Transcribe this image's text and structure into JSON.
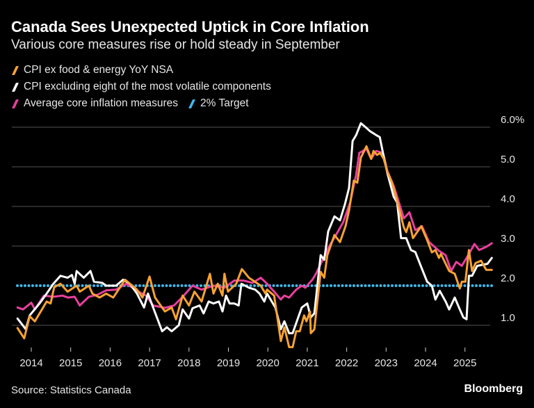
{
  "header": {
    "title": "Canada Sees Unexpected Uptick in Core Inflation",
    "subtitle": "Various core measures rise or hold steady in September"
  },
  "footer": {
    "source": "Source: Statistics Canada",
    "brand": "Bloomberg"
  },
  "colors": {
    "orange": "#f7a233",
    "white": "#ffffff",
    "pink": "#e8409e",
    "blue": "#3fb6e8",
    "grid": "#555555"
  },
  "chart_data": {
    "type": "line",
    "title": "Canada Sees Unexpected Uptick in Core Inflation",
    "subtitle": "Various core measures rise or hold steady in September",
    "xlabel": "",
    "ylabel": "",
    "xlim": [
      2013.65,
      2025.7
    ],
    "ylim": [
      0.45,
      6.2
    ],
    "x_ticks": [
      2014,
      2015,
      2016,
      2017,
      2018,
      2019,
      2020,
      2021,
      2022,
      2023,
      2024,
      2025
    ],
    "x_tick_labels": [
      "2014",
      "2015",
      "2016",
      "2017",
      "2018",
      "2019",
      "2020",
      "2021",
      "2022",
      "2023",
      "2024",
      "2025"
    ],
    "y_ticks": [
      1,
      2,
      3,
      4,
      5,
      6
    ],
    "y_tick_labels": [
      "1.0",
      "2.0",
      "3.0",
      "4.0",
      "5.0",
      "6.0%"
    ],
    "grid": true,
    "legend_position": "top-left",
    "series": [
      {
        "name": "CPI ex food & energy YoY NSA",
        "color": "#f7a233",
        "points": [
          [
            2013.65,
            0.93
          ],
          [
            2013.82,
            0.67
          ],
          [
            2013.96,
            1.23
          ],
          [
            2014.09,
            1.1
          ],
          [
            2014.39,
            1.6
          ],
          [
            2014.49,
            1.55
          ],
          [
            2014.58,
            1.96
          ],
          [
            2014.74,
            2.05
          ],
          [
            2014.92,
            1.85
          ],
          [
            2015.15,
            2.0
          ],
          [
            2015.23,
            1.85
          ],
          [
            2015.46,
            2.0
          ],
          [
            2015.55,
            1.8
          ],
          [
            2015.73,
            1.7
          ],
          [
            2015.9,
            1.8
          ],
          [
            2016.08,
            1.7
          ],
          [
            2016.38,
            2.15
          ],
          [
            2016.68,
            1.9
          ],
          [
            2016.82,
            1.7
          ],
          [
            2017.0,
            2.23
          ],
          [
            2017.14,
            1.7
          ],
          [
            2017.39,
            1.35
          ],
          [
            2017.56,
            1.45
          ],
          [
            2017.67,
            1.15
          ],
          [
            2017.84,
            1.75
          ],
          [
            2018.0,
            1.5
          ],
          [
            2018.14,
            1.85
          ],
          [
            2018.32,
            1.6
          ],
          [
            2018.53,
            2.3
          ],
          [
            2018.62,
            1.8
          ],
          [
            2018.73,
            2.05
          ],
          [
            2018.85,
            1.75
          ],
          [
            2018.9,
            2.3
          ],
          [
            2018.99,
            1.85
          ],
          [
            2019.2,
            2.05
          ],
          [
            2019.34,
            2.42
          ],
          [
            2019.52,
            2.2
          ],
          [
            2019.82,
            2.0
          ],
          [
            2019.94,
            1.8
          ],
          [
            2019.98,
            1.9
          ],
          [
            2020.16,
            1.75
          ],
          [
            2020.33,
            0.6
          ],
          [
            2020.42,
            0.95
          ],
          [
            2020.54,
            0.45
          ],
          [
            2020.63,
            0.45
          ],
          [
            2020.72,
            0.85
          ],
          [
            2020.81,
            0.85
          ],
          [
            2020.92,
            1.25
          ],
          [
            2020.98,
            1.1
          ],
          [
            2021.07,
            1.35
          ],
          [
            2021.09,
            0.8
          ],
          [
            2021.18,
            0.9
          ],
          [
            2021.34,
            2.35
          ],
          [
            2021.43,
            2.2
          ],
          [
            2021.51,
            2.77
          ],
          [
            2021.69,
            3.28
          ],
          [
            2021.83,
            3.1
          ],
          [
            2021.97,
            3.5
          ],
          [
            2022.06,
            3.9
          ],
          [
            2022.18,
            4.65
          ],
          [
            2022.27,
            4.6
          ],
          [
            2022.36,
            5.23
          ],
          [
            2022.5,
            5.52
          ],
          [
            2022.62,
            5.2
          ],
          [
            2022.68,
            5.4
          ],
          [
            2022.77,
            5.3
          ],
          [
            2022.85,
            5.35
          ],
          [
            2022.94,
            5.2
          ],
          [
            2023.03,
            4.88
          ],
          [
            2023.15,
            4.6
          ],
          [
            2023.29,
            4.1
          ],
          [
            2023.45,
            3.47
          ],
          [
            2023.51,
            3.35
          ],
          [
            2023.59,
            3.6
          ],
          [
            2023.68,
            3.2
          ],
          [
            2023.89,
            3.5
          ],
          [
            2024.04,
            3.15
          ],
          [
            2024.16,
            2.84
          ],
          [
            2024.25,
            2.9
          ],
          [
            2024.34,
            2.7
          ],
          [
            2024.39,
            2.8
          ],
          [
            2024.6,
            2.37
          ],
          [
            2024.74,
            2.3
          ],
          [
            2024.87,
            1.93
          ],
          [
            2024.92,
            2.1
          ],
          [
            2025.01,
            2.1
          ],
          [
            2025.1,
            2.9
          ],
          [
            2025.18,
            2.37
          ],
          [
            2025.27,
            2.57
          ],
          [
            2025.41,
            2.63
          ],
          [
            2025.54,
            2.4
          ],
          [
            2025.68,
            2.4
          ]
        ]
      },
      {
        "name": "CPI excluding eight of the most volatile components",
        "color": "#ffffff",
        "points": [
          [
            2013.65,
            1.17
          ],
          [
            2013.86,
            0.9
          ],
          [
            2013.96,
            1.25
          ],
          [
            2014.21,
            1.55
          ],
          [
            2014.39,
            1.8
          ],
          [
            2014.56,
            2.05
          ],
          [
            2014.74,
            2.25
          ],
          [
            2014.92,
            2.2
          ],
          [
            2015.03,
            2.27
          ],
          [
            2015.1,
            2.05
          ],
          [
            2015.15,
            2.37
          ],
          [
            2015.33,
            2.2
          ],
          [
            2015.5,
            2.37
          ],
          [
            2015.59,
            2.1
          ],
          [
            2015.8,
            2.07
          ],
          [
            2015.9,
            2.0
          ],
          [
            2016.15,
            2.0
          ],
          [
            2016.33,
            2.15
          ],
          [
            2016.5,
            2.05
          ],
          [
            2016.68,
            1.8
          ],
          [
            2016.86,
            1.45
          ],
          [
            2016.96,
            1.8
          ],
          [
            2017.09,
            1.45
          ],
          [
            2017.32,
            0.85
          ],
          [
            2017.44,
            0.95
          ],
          [
            2017.56,
            0.85
          ],
          [
            2017.74,
            1.0
          ],
          [
            2017.84,
            1.4
          ],
          [
            2018.0,
            1.17
          ],
          [
            2018.09,
            1.43
          ],
          [
            2018.27,
            1.5
          ],
          [
            2018.37,
            1.3
          ],
          [
            2018.5,
            1.6
          ],
          [
            2018.62,
            1.55
          ],
          [
            2018.76,
            1.6
          ],
          [
            2018.85,
            1.35
          ],
          [
            2018.94,
            1.75
          ],
          [
            2019.03,
            1.55
          ],
          [
            2019.15,
            1.55
          ],
          [
            2019.26,
            1.5
          ],
          [
            2019.33,
            2.05
          ],
          [
            2019.52,
            1.95
          ],
          [
            2019.68,
            1.9
          ],
          [
            2019.79,
            1.8
          ],
          [
            2019.91,
            1.6
          ],
          [
            2019.98,
            1.8
          ],
          [
            2020.19,
            1.45
          ],
          [
            2020.33,
            0.9
          ],
          [
            2020.42,
            1.1
          ],
          [
            2020.54,
            0.8
          ],
          [
            2020.63,
            0.8
          ],
          [
            2020.77,
            1.2
          ],
          [
            2020.86,
            1.45
          ],
          [
            2021.0,
            1.55
          ],
          [
            2021.09,
            1.2
          ],
          [
            2021.18,
            1.3
          ],
          [
            2021.34,
            2.77
          ],
          [
            2021.43,
            2.65
          ],
          [
            2021.53,
            3.37
          ],
          [
            2021.69,
            3.75
          ],
          [
            2021.83,
            3.65
          ],
          [
            2021.96,
            4.07
          ],
          [
            2022.06,
            4.47
          ],
          [
            2022.15,
            5.65
          ],
          [
            2022.24,
            5.8
          ],
          [
            2022.36,
            6.1
          ],
          [
            2022.48,
            6.0
          ],
          [
            2022.59,
            5.9
          ],
          [
            2022.75,
            5.8
          ],
          [
            2022.84,
            5.75
          ],
          [
            2022.92,
            5.35
          ],
          [
            2023.03,
            4.85
          ],
          [
            2023.19,
            4.25
          ],
          [
            2023.28,
            4.1
          ],
          [
            2023.38,
            3.2
          ],
          [
            2023.51,
            3.2
          ],
          [
            2023.63,
            2.9
          ],
          [
            2023.74,
            2.85
          ],
          [
            2023.9,
            2.45
          ],
          [
            2024.04,
            2.1
          ],
          [
            2024.16,
            2.0
          ],
          [
            2024.25,
            1.65
          ],
          [
            2024.36,
            1.87
          ],
          [
            2024.51,
            1.6
          ],
          [
            2024.6,
            1.4
          ],
          [
            2024.74,
            1.7
          ],
          [
            2024.87,
            1.4
          ],
          [
            2024.96,
            1.2
          ],
          [
            2025.04,
            1.15
          ],
          [
            2025.1,
            2.25
          ],
          [
            2025.18,
            2.25
          ],
          [
            2025.31,
            2.5
          ],
          [
            2025.41,
            2.52
          ],
          [
            2025.57,
            2.55
          ],
          [
            2025.68,
            2.7
          ]
        ]
      },
      {
        "name": "Average core inflation measures",
        "color": "#e8409e",
        "points": [
          [
            2013.65,
            1.45
          ],
          [
            2013.79,
            1.4
          ],
          [
            2014.0,
            1.57
          ],
          [
            2014.09,
            1.4
          ],
          [
            2014.32,
            1.75
          ],
          [
            2014.56,
            1.72
          ],
          [
            2014.79,
            1.75
          ],
          [
            2014.93,
            1.7
          ],
          [
            2015.1,
            1.72
          ],
          [
            2015.23,
            1.5
          ],
          [
            2015.46,
            1.72
          ],
          [
            2015.68,
            1.77
          ],
          [
            2015.9,
            1.88
          ],
          [
            2016.15,
            1.9
          ],
          [
            2016.41,
            2.05
          ],
          [
            2016.68,
            1.87
          ],
          [
            2016.91,
            1.75
          ],
          [
            2017.09,
            1.5
          ],
          [
            2017.39,
            1.44
          ],
          [
            2017.62,
            1.5
          ],
          [
            2017.84,
            1.72
          ],
          [
            2018.09,
            2.0
          ],
          [
            2018.32,
            1.9
          ],
          [
            2018.62,
            2.0
          ],
          [
            2018.9,
            1.95
          ],
          [
            2019.15,
            2.13
          ],
          [
            2019.38,
            2.13
          ],
          [
            2019.61,
            2.07
          ],
          [
            2019.82,
            2.2
          ],
          [
            2019.98,
            2.05
          ],
          [
            2020.16,
            1.85
          ],
          [
            2020.33,
            1.65
          ],
          [
            2020.42,
            1.75
          ],
          [
            2020.54,
            1.7
          ],
          [
            2020.72,
            1.9
          ],
          [
            2020.86,
            2.0
          ],
          [
            2020.95,
            1.95
          ],
          [
            2021.13,
            2.15
          ],
          [
            2021.22,
            2.3
          ],
          [
            2021.39,
            2.65
          ],
          [
            2021.56,
            3.0
          ],
          [
            2021.74,
            3.3
          ],
          [
            2021.91,
            3.6
          ],
          [
            2022.09,
            4.1
          ],
          [
            2022.24,
            4.8
          ],
          [
            2022.32,
            5.35
          ],
          [
            2022.5,
            5.45
          ],
          [
            2022.62,
            5.2
          ],
          [
            2022.75,
            5.4
          ],
          [
            2022.92,
            5.35
          ],
          [
            2023.03,
            4.9
          ],
          [
            2023.2,
            4.5
          ],
          [
            2023.45,
            3.7
          ],
          [
            2023.59,
            3.85
          ],
          [
            2023.74,
            3.4
          ],
          [
            2023.91,
            3.5
          ],
          [
            2024.09,
            3.1
          ],
          [
            2024.34,
            2.88
          ],
          [
            2024.51,
            2.77
          ],
          [
            2024.65,
            2.37
          ],
          [
            2024.78,
            2.6
          ],
          [
            2024.92,
            2.5
          ],
          [
            2025.1,
            2.8
          ],
          [
            2025.24,
            3.05
          ],
          [
            2025.36,
            2.9
          ],
          [
            2025.54,
            2.98
          ],
          [
            2025.68,
            3.07
          ]
        ]
      },
      {
        "name": "2% Target",
        "color": "#3fb6e8",
        "constant": 2.0,
        "style": "dotted"
      }
    ]
  }
}
